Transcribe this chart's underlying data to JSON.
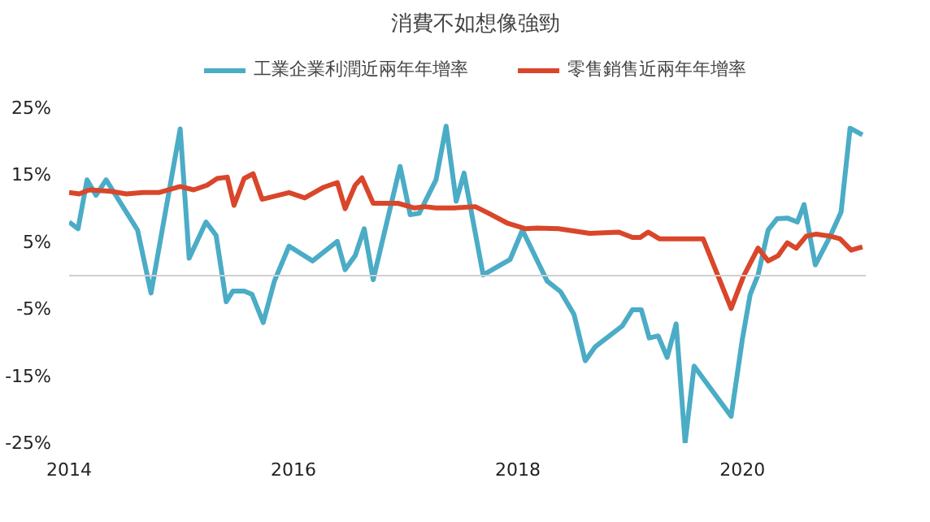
{
  "chart_data": {
    "type": "line",
    "title": "消費不如想像強勁",
    "xlim": [
      2014,
      2021.1
    ],
    "xticks": [
      2014,
      2016,
      2018,
      2020
    ],
    "ylim": [
      -25,
      25
    ],
    "yticks": [
      {
        "value": -25,
        "label": "-25%"
      },
      {
        "value": -15,
        "label": "-15%"
      },
      {
        "value": -5,
        "label": "-5%"
      },
      {
        "value": 5,
        "label": "5%"
      },
      {
        "value": 15,
        "label": "15%"
      },
      {
        "value": 25,
        "label": "25%"
      }
    ],
    "grid": false,
    "legend": "top",
    "marker": "none",
    "line_style": "solid",
    "ref_lines": [
      {
        "axis": "y",
        "value": 0,
        "label": null,
        "color": "#d0d0d0"
      }
    ],
    "series": [
      {
        "name": "工業企業利潤近兩年年增率",
        "color": "#4bacc6",
        "x": [
          2014.0,
          2014.08,
          2014.16,
          2014.24,
          2014.33,
          2014.61,
          2014.73,
          2014.99,
          2015.07,
          2015.22,
          2015.31,
          2015.4,
          2015.46,
          2015.56,
          2015.63,
          2015.73,
          2015.83,
          2015.96,
          2016.17,
          2016.39,
          2016.46,
          2016.55,
          2016.63,
          2016.71,
          2016.95,
          2017.04,
          2017.12,
          2017.27,
          2017.36,
          2017.45,
          2017.52,
          2017.69,
          2017.93,
          2018.04,
          2018.26,
          2018.38,
          2018.5,
          2018.6,
          2018.69,
          2018.93,
          2019.02,
          2019.1,
          2019.17,
          2019.25,
          2019.33,
          2019.41,
          2019.49,
          2019.57,
          2019.9,
          2020.0,
          2020.07,
          2020.14,
          2020.23,
          2020.31,
          2020.4,
          2020.49,
          2020.55,
          2020.65,
          2020.78,
          2020.88,
          2020.96,
          2021.07
        ],
        "values": [
          8.0,
          7.0,
          14.3,
          12.0,
          14.3,
          6.8,
          -2.6,
          21.9,
          2.6,
          8.0,
          6.0,
          -3.9,
          -2.3,
          -2.3,
          -2.8,
          -7.0,
          -0.8,
          4.4,
          2.2,
          5.1,
          0.9,
          3.0,
          7.0,
          -0.6,
          16.3,
          9.1,
          9.3,
          14.3,
          22.3,
          11.1,
          15.3,
          0.1,
          2.4,
          6.8,
          -0.8,
          -2.4,
          -5.8,
          -12.7,
          -10.6,
          -7.5,
          -5.1,
          -5.1,
          -9.3,
          -9.0,
          -12.2,
          -7.2,
          -24.9,
          -13.5,
          -21.0,
          -9.5,
          -2.8,
          0.1,
          6.8,
          8.5,
          8.6,
          8.0,
          10.6,
          1.6,
          5.8,
          9.5,
          22.0,
          21.0
        ]
      },
      {
        "name": "零售銷售近兩年年增率",
        "color": "#d9462a",
        "x": [
          2014.0,
          2014.09,
          2014.18,
          2014.37,
          2014.51,
          2014.66,
          2014.8,
          2014.99,
          2015.11,
          2015.23,
          2015.32,
          2015.41,
          2015.47,
          2015.56,
          2015.64,
          2015.72,
          2015.96,
          2016.1,
          2016.27,
          2016.39,
          2016.46,
          2016.55,
          2016.61,
          2016.71,
          2016.93,
          2017.08,
          2017.17,
          2017.27,
          2017.43,
          2017.62,
          2017.74,
          2017.91,
          2018.07,
          2018.17,
          2018.36,
          2018.64,
          2018.9,
          2019.02,
          2019.09,
          2019.16,
          2019.26,
          2019.65,
          2019.9,
          2020.01,
          2020.14,
          2020.23,
          2020.32,
          2020.4,
          2020.48,
          2020.57,
          2020.66,
          2020.78,
          2020.87,
          2020.97,
          2021.07
        ],
        "values": [
          12.4,
          12.2,
          12.8,
          12.6,
          12.2,
          12.4,
          12.4,
          13.3,
          12.8,
          13.5,
          14.5,
          14.7,
          10.5,
          14.5,
          15.2,
          11.4,
          12.4,
          11.6,
          13.2,
          13.9,
          10.0,
          13.5,
          14.6,
          10.8,
          10.8,
          10.1,
          10.3,
          10.1,
          10.1,
          10.3,
          9.3,
          7.8,
          7.0,
          7.1,
          7.0,
          6.3,
          6.5,
          5.7,
          5.7,
          6.5,
          5.5,
          5.5,
          -4.9,
          -0.1,
          4.1,
          2.2,
          3.0,
          4.9,
          4.1,
          5.9,
          6.2,
          5.9,
          5.5,
          3.8,
          4.3
        ]
      }
    ]
  }
}
